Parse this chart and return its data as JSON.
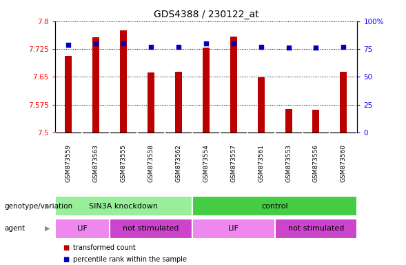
{
  "title": "GDS4388 / 230122_at",
  "samples": [
    "GSM873559",
    "GSM873563",
    "GSM873555",
    "GSM873558",
    "GSM873562",
    "GSM873554",
    "GSM873557",
    "GSM873561",
    "GSM873553",
    "GSM873556",
    "GSM873560"
  ],
  "bar_values": [
    7.706,
    7.756,
    7.776,
    7.662,
    7.663,
    7.728,
    7.758,
    7.648,
    7.563,
    7.562,
    7.663
  ],
  "percentile_values": [
    79,
    80,
    80,
    77,
    77,
    80,
    80,
    77,
    76,
    76,
    77
  ],
  "ymin": 7.5,
  "ymax": 7.8,
  "yticks": [
    7.5,
    7.575,
    7.65,
    7.725,
    7.8
  ],
  "ytick_labels": [
    "7.5",
    "7.575",
    "7.65",
    "7.725",
    "7.8"
  ],
  "right_yticks": [
    0,
    25,
    50,
    75,
    100
  ],
  "right_ytick_labels": [
    "0",
    "25",
    "50",
    "75",
    "100%"
  ],
  "bar_color": "#bb0000",
  "percentile_color": "#0000bb",
  "bar_width": 0.25,
  "groups": [
    {
      "label": "SIN3A knockdown",
      "start": 0,
      "end": 5,
      "color": "#99ee99"
    },
    {
      "label": "control",
      "start": 5,
      "end": 11,
      "color": "#44cc44"
    }
  ],
  "agents": [
    {
      "label": "LIF",
      "start": 0,
      "end": 2,
      "color": "#ee88ee"
    },
    {
      "label": "not stimulated",
      "start": 2,
      "end": 5,
      "color": "#cc44cc"
    },
    {
      "label": "LIF",
      "start": 5,
      "end": 8,
      "color": "#ee88ee"
    },
    {
      "label": "not stimulated",
      "start": 8,
      "end": 11,
      "color": "#cc44cc"
    }
  ],
  "legend_items": [
    {
      "label": "transformed count",
      "color": "#bb0000"
    },
    {
      "label": "percentile rank within the sample",
      "color": "#0000bb"
    }
  ],
  "left_label": "genotype/variation",
  "agent_label": "agent",
  "plot_bg_color": "#ffffff",
  "sample_band_color": "#cccccc"
}
